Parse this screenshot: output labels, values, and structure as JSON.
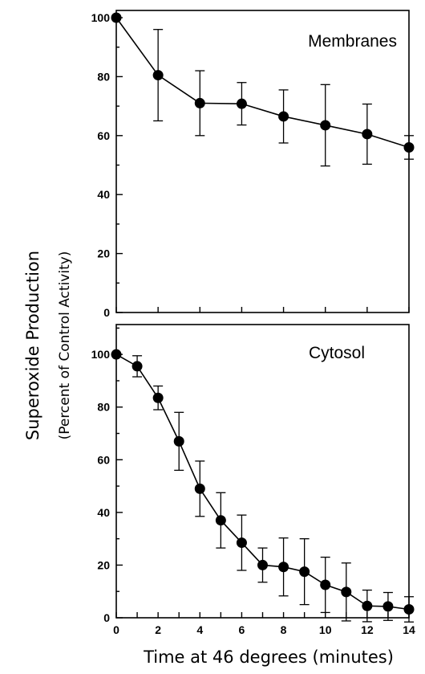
{
  "chart_data": [
    {
      "type": "line",
      "panel_label": "Membranes",
      "x": [
        0,
        2,
        4,
        6,
        8,
        10,
        12,
        14
      ],
      "values": [
        100,
        80.5,
        71,
        70.8,
        66.5,
        63.5,
        60.5,
        56
      ],
      "errors": [
        0,
        15.5,
        11,
        7.2,
        9,
        13.8,
        10.2,
        4
      ],
      "xlim": [
        0,
        14
      ],
      "ylim": [
        0,
        100
      ],
      "xticks": [
        0,
        2,
        4,
        6,
        8,
        10,
        12,
        14
      ],
      "yticks": [
        0,
        20,
        40,
        60,
        80,
        100
      ],
      "ytick_labels": [
        "0",
        "20",
        "40",
        "60",
        "80",
        "100"
      ],
      "grid": false
    },
    {
      "type": "line",
      "panel_label": "Cytosol",
      "x": [
        0,
        1,
        2,
        3,
        4,
        5,
        6,
        7,
        8,
        9,
        10,
        11,
        12,
        13,
        14
      ],
      "values": [
        100,
        95.5,
        83.5,
        67,
        49,
        37,
        28.5,
        20,
        19.3,
        17.5,
        12.5,
        9.8,
        4.5,
        4.3,
        3.2
      ],
      "errors": [
        0,
        4,
        4.5,
        11,
        10.5,
        10.5,
        10.5,
        6.5,
        11,
        12.5,
        10.5,
        11,
        6,
        5.3,
        4.8
      ],
      "xlim": [
        0,
        14
      ],
      "ylim": [
        0,
        115
      ],
      "xticks": [
        0,
        1,
        2,
        3,
        4,
        5,
        6,
        7,
        8,
        9,
        10,
        11,
        12,
        13,
        14
      ],
      "xtick_labels": [
        "0",
        "",
        "2",
        "",
        "4",
        "",
        "6",
        "",
        "8",
        "",
        "10",
        "",
        "12",
        "",
        "14"
      ],
      "yticks": [
        0,
        20,
        40,
        60,
        80,
        100
      ],
      "ytick_labels": [
        "0",
        "20",
        "40",
        "60",
        "80",
        "100"
      ],
      "grid": false
    }
  ],
  "ylabel": "Superoxide Production",
  "ylabel_sub": "(Percent of Control Activity)",
  "xlabel": "Time at 46 degrees (minutes)"
}
